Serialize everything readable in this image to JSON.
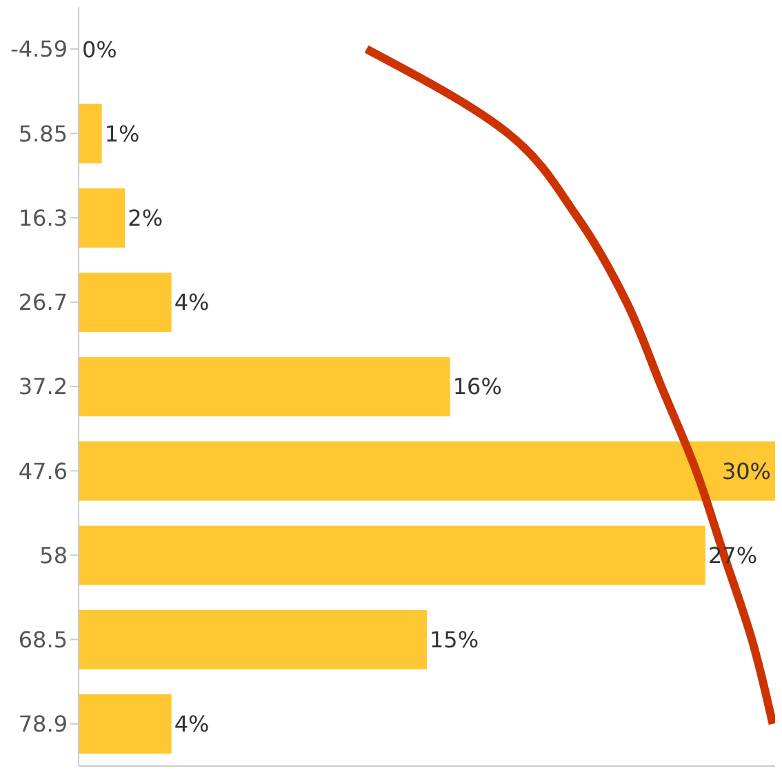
{
  "chart_data": {
    "type": "bar",
    "orientation": "horizontal",
    "categories": [
      "-4.59",
      "5.85",
      "16.3",
      "26.7",
      "37.2",
      "47.6",
      "58",
      "68.5",
      "78.9"
    ],
    "series": [
      {
        "color": "#ffc832",
        "values": [
          0,
          1,
          2,
          4,
          16,
          30,
          27,
          15,
          4
        ],
        "value_labels": [
          "0%",
          "1%",
          "2%",
          "4%",
          "16%",
          "30%",
          "27%",
          "15%",
          "4%"
        ]
      },
      {
        "type": "line",
        "color": "#cc3300",
        "values": [
          12.4,
          18.5,
          21.5,
          23.6,
          25.1,
          26.6,
          27.8,
          29.0,
          29.9
        ]
      }
    ],
    "xlim": [
      0,
      30
    ],
    "tick_labels": "y",
    "marker": "none",
    "line_style": "solid"
  }
}
